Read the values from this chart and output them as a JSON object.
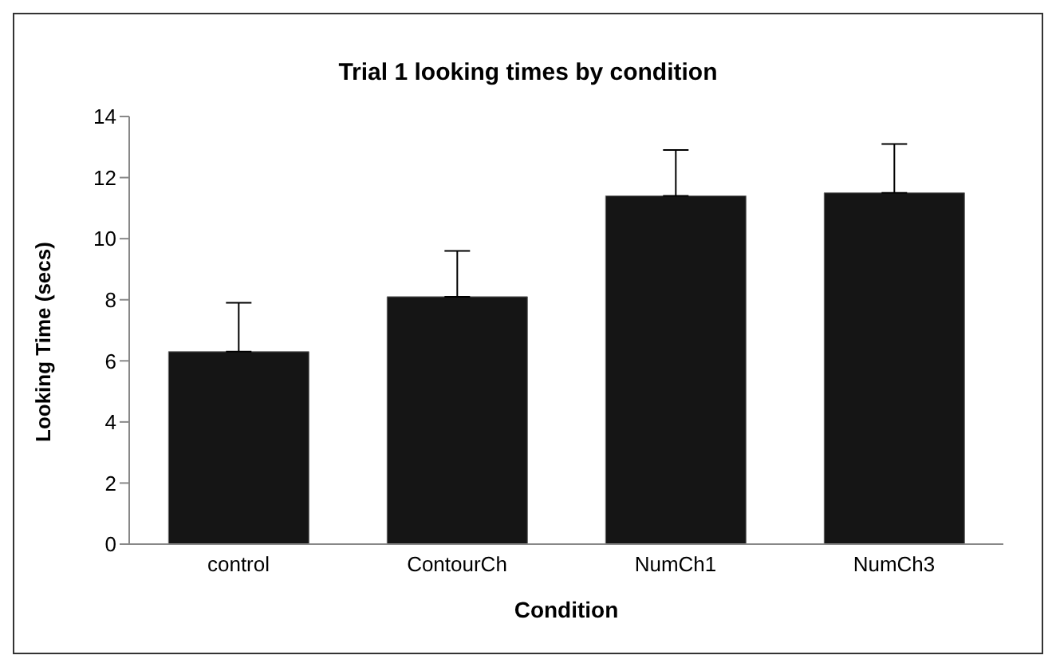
{
  "chart_data": {
    "type": "bar",
    "title": "Trial 1 looking times by condition",
    "xlabel": "Condition",
    "ylabel": "Looking Time (secs)",
    "categories": [
      "control",
      "ContourCh",
      "NumCh1",
      "NumCh3"
    ],
    "values": [
      6.3,
      8.1,
      11.4,
      11.5
    ],
    "errors": [
      [
        6.3,
        7.9
      ],
      [
        8.1,
        9.6
      ],
      [
        11.4,
        12.9
      ],
      [
        11.5,
        13.1
      ]
    ],
    "color": "#151515",
    "ylim": [
      0,
      14
    ],
    "yticks": [
      0,
      2,
      4,
      6,
      8,
      10,
      12,
      14
    ],
    "grid": false,
    "legend": false
  }
}
